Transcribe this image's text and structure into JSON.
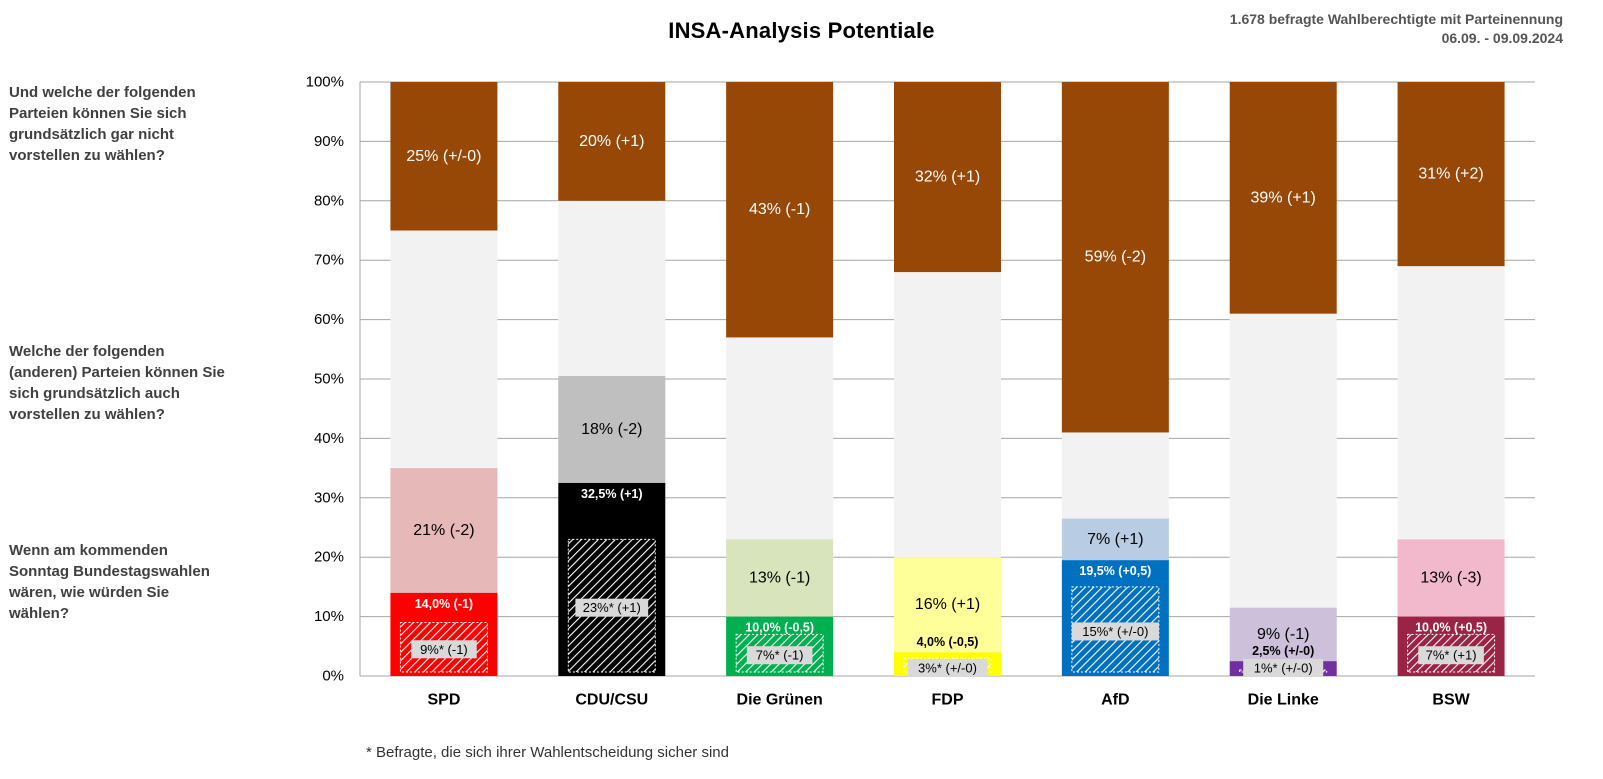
{
  "title": "INSA-Analysis Potentiale",
  "meta": {
    "line1": "1.678 befragte Wahlberechtigte mit Parteinennung",
    "line2": "06.09. - 09.09.2024"
  },
  "questions": {
    "q_top": "Und welche der folgenden Parteien können Sie sich grundsätzlich gar nicht vorstellen zu wählen?",
    "q_mid": "Welche der folgenden (anderen) Parteien können Sie sich grundsätzlich auch vorstellen zu wählen?",
    "q_bottom": "Wenn am kommenden Sonntag Bundestagswahlen wären, wie würden Sie wählen?"
  },
  "footnote": "* Befragte, die sich ihrer Wahlentscheidung sicher sind",
  "chart_data": {
    "type": "bar",
    "stacked": true,
    "ylim": [
      0,
      100
    ],
    "yticks": [
      "0%",
      "10%",
      "20%",
      "30%",
      "40%",
      "50%",
      "60%",
      "70%",
      "80%",
      "90%",
      "100%"
    ],
    "grid": true,
    "categories": [
      "SPD",
      "CDU/CSU",
      "Die Grünen",
      "FDP",
      "AfD",
      "Die Linke",
      "BSW"
    ],
    "parties": [
      {
        "name": "SPD",
        "color": "#ff0000",
        "potential_color": "#e6b8b7",
        "vote": 14.0,
        "vote_label": "14,0% (-1)",
        "sure": 9,
        "sure_label": "9%* (-1)",
        "potential": 21,
        "potential_label": "21% (-2)",
        "reject": 25,
        "reject_label": "25% (+/-0)"
      },
      {
        "name": "CDU/CSU",
        "color": "#000000",
        "potential_color": "#bfbfbf",
        "vote": 32.5,
        "vote_label": "32,5% (+1)",
        "sure": 23,
        "sure_label": "23%* (+1)",
        "potential": 18,
        "potential_label": "18% (-2)",
        "reject": 20,
        "reject_label": "20% (+1)"
      },
      {
        "name": "Die Grünen",
        "color": "#00b050",
        "potential_color": "#d8e4bc",
        "vote": 10.0,
        "vote_label": "10,0% (-0,5)",
        "sure": 7,
        "sure_label": "7%* (-1)",
        "potential": 13,
        "potential_label": "13% (-1)",
        "reject": 43,
        "reject_label": "43% (-1)"
      },
      {
        "name": "FDP",
        "color": "#ffff00",
        "potential_color": "#ffff99",
        "vote": 4.0,
        "vote_label": "4,0% (-0,5)",
        "sure": 3,
        "sure_label": "3%* (+/-0)",
        "potential": 16,
        "potential_label": "16% (+1)",
        "reject": 32,
        "reject_label": "32% (+1)"
      },
      {
        "name": "AfD",
        "color": "#0070c0",
        "potential_color": "#b8cce4",
        "vote": 19.5,
        "vote_label": "19,5% (+0,5)",
        "sure": 15,
        "sure_label": "15%* (+/-0)",
        "potential": 7,
        "potential_label": "7% (+1)",
        "reject": 59,
        "reject_label": "59% (-2)"
      },
      {
        "name": "Die Linke",
        "color": "#7030a0",
        "potential_color": "#ccc0da",
        "vote": 2.5,
        "vote_label": "2,5% (+/-0)",
        "sure": 1,
        "sure_label": "1%* (+/-0)",
        "potential": 9,
        "potential_label": "9% (-1)",
        "reject": 39,
        "reject_label": "39% (+1)"
      },
      {
        "name": "BSW",
        "color": "#9b2346",
        "potential_color": "#f2b8cc",
        "vote": 10.0,
        "vote_label": "10,0% (+0,5)",
        "sure": 7,
        "sure_label": "7%* (+1)",
        "potential": 13,
        "potential_label": "13% (-3)",
        "reject": 31,
        "reject_label": "31% (+2)"
      }
    ],
    "colors": {
      "reject": "#974706",
      "remainder": "#f2f2f2",
      "grid": "#a6a6a6"
    }
  }
}
